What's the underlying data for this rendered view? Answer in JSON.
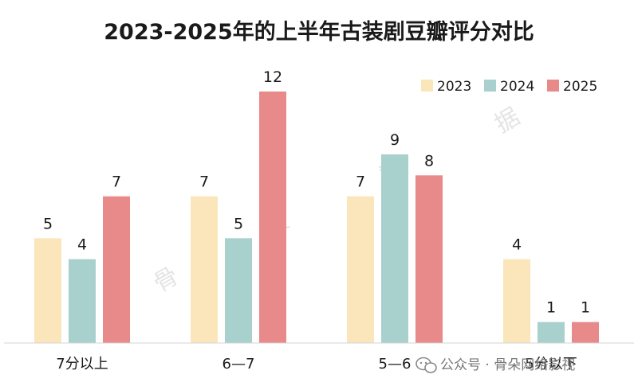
{
  "chart_data": {
    "type": "bar",
    "title": "2023-2025年的上半年古装剧豆瓣评分对比",
    "categories": [
      "7分以上",
      "6—7",
      "5—6",
      "5分以下"
    ],
    "series": [
      {
        "name": "2023",
        "values": [
          5,
          7,
          7,
          4
        ],
        "color": "#fbe6bb"
      },
      {
        "name": "2024",
        "values": [
          4,
          5,
          9,
          1
        ],
        "color": "#a8d0cd"
      },
      {
        "name": "2025",
        "values": [
          7,
          12,
          8,
          1
        ],
        "color": "#e8898a"
      }
    ],
    "ylim": [
      0,
      12
    ],
    "xlabel": "",
    "ylabel": "",
    "grid": false,
    "legend_position": "top-right"
  },
  "watermarks": [
    "骨",
    "朵",
    "数",
    "据"
  ],
  "wechat_source": {
    "label": "公众号 · 骨朵网络影视",
    "icon": "wechat-icon"
  }
}
